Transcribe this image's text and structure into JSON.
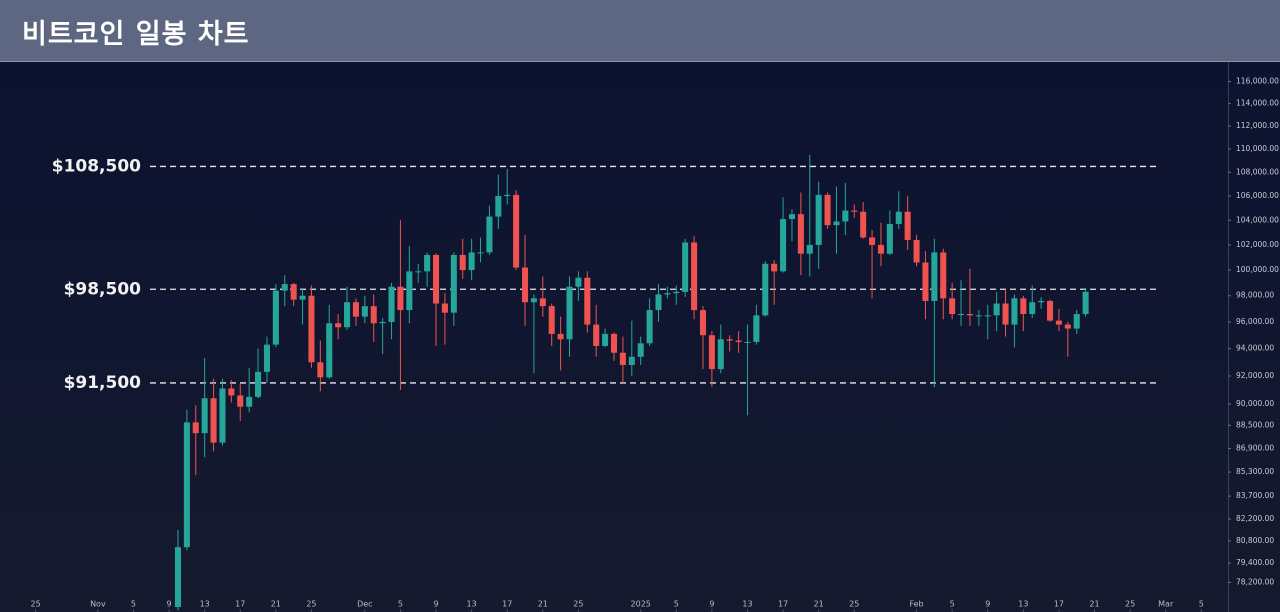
{
  "header": {
    "title": "비트코인 일봉 차트"
  },
  "chart_data": {
    "type": "candlestick",
    "log_scale": true,
    "up_color": "#26a69a",
    "down_color": "#ef5350",
    "xlim": [
      "2024-10-21",
      "2025-03-08"
    ],
    "ylim": [
      76400,
      117800
    ],
    "xticks": [
      {
        "value": "2024-10-25",
        "label": "25"
      },
      {
        "value": "2024-11-01",
        "label": "Nov"
      },
      {
        "value": "2024-11-05",
        "label": "5"
      },
      {
        "value": "2024-11-09",
        "label": "9"
      },
      {
        "value": "2024-11-13",
        "label": "13"
      },
      {
        "value": "2024-11-17",
        "label": "17"
      },
      {
        "value": "2024-11-21",
        "label": "21"
      },
      {
        "value": "2024-11-25",
        "label": "25"
      },
      {
        "value": "2024-12-01",
        "label": "Dec"
      },
      {
        "value": "2024-12-05",
        "label": "5"
      },
      {
        "value": "2024-12-09",
        "label": "9"
      },
      {
        "value": "2024-12-13",
        "label": "13"
      },
      {
        "value": "2024-12-17",
        "label": "17"
      },
      {
        "value": "2024-12-21",
        "label": "21"
      },
      {
        "value": "2024-12-25",
        "label": "25"
      },
      {
        "value": "2025-01-01",
        "label": "2025"
      },
      {
        "value": "2025-01-05",
        "label": "5"
      },
      {
        "value": "2025-01-09",
        "label": "9"
      },
      {
        "value": "2025-01-13",
        "label": "13"
      },
      {
        "value": "2025-01-17",
        "label": "17"
      },
      {
        "value": "2025-01-21",
        "label": "21"
      },
      {
        "value": "2025-01-25",
        "label": "25"
      },
      {
        "value": "2025-02-01",
        "label": "Feb"
      },
      {
        "value": "2025-02-05",
        "label": "5"
      },
      {
        "value": "2025-02-09",
        "label": "9"
      },
      {
        "value": "2025-02-13",
        "label": "13"
      },
      {
        "value": "2025-02-17",
        "label": "17"
      },
      {
        "value": "2025-02-21",
        "label": "21"
      },
      {
        "value": "2025-02-25",
        "label": "25"
      },
      {
        "value": "2025-03-01",
        "label": "Mar"
      },
      {
        "value": "2025-03-05",
        "label": "5"
      }
    ],
    "yticks": [
      {
        "value": 116000,
        "label": "116,000.00"
      },
      {
        "value": 114000,
        "label": "114,000.00"
      },
      {
        "value": 112000,
        "label": "112,000.00"
      },
      {
        "value": 110000,
        "label": "110,000.00"
      },
      {
        "value": 108000,
        "label": "108,000.00"
      },
      {
        "value": 106000,
        "label": "106,000.00"
      },
      {
        "value": 104000,
        "label": "104,000.00"
      },
      {
        "value": 102000,
        "label": "102,000.00"
      },
      {
        "value": 100000,
        "label": "100,000.00"
      },
      {
        "value": 98000,
        "label": "98,000.00"
      },
      {
        "value": 96000,
        "label": "96,000.00"
      },
      {
        "value": 94000,
        "label": "94,000.00"
      },
      {
        "value": 92000,
        "label": "92,000.00"
      },
      {
        "value": 90000,
        "label": "90,000.00"
      },
      {
        "value": 88500,
        "label": "88,500.00"
      },
      {
        "value": 86900,
        "label": "86,900.00"
      },
      {
        "value": 85300,
        "label": "85,300.00"
      },
      {
        "value": 83700,
        "label": "83,700.00"
      },
      {
        "value": 82200,
        "label": "82,200.00"
      },
      {
        "value": 80800,
        "label": "80,800.00"
      },
      {
        "value": 79400,
        "label": "79,400.00"
      },
      {
        "value": 78200,
        "label": "78,200.00"
      }
    ],
    "levels": [
      {
        "value": 108500,
        "label": "$108,500"
      },
      {
        "value": 98500,
        "label": "$98,500"
      },
      {
        "value": 91500,
        "label": "$91,500"
      }
    ],
    "x": [
      "2024-11-10",
      "2024-11-11",
      "2024-11-12",
      "2024-11-13",
      "2024-11-14",
      "2024-11-15",
      "2024-11-16",
      "2024-11-17",
      "2024-11-18",
      "2024-11-19",
      "2024-11-20",
      "2024-11-21",
      "2024-11-22",
      "2024-11-23",
      "2024-11-24",
      "2024-11-25",
      "2024-11-26",
      "2024-11-27",
      "2024-11-28",
      "2024-11-29",
      "2024-11-30",
      "2024-12-01",
      "2024-12-02",
      "2024-12-03",
      "2024-12-04",
      "2024-12-05",
      "2024-12-06",
      "2024-12-07",
      "2024-12-08",
      "2024-12-09",
      "2024-12-10",
      "2024-12-11",
      "2024-12-12",
      "2024-12-13",
      "2024-12-14",
      "2024-12-15",
      "2024-12-16",
      "2024-12-17",
      "2024-12-18",
      "2024-12-19",
      "2024-12-20",
      "2024-12-21",
      "2024-12-22",
      "2024-12-23",
      "2024-12-24",
      "2024-12-25",
      "2024-12-26",
      "2024-12-27",
      "2024-12-28",
      "2024-12-29",
      "2024-12-30",
      "2024-12-31",
      "2025-01-01",
      "2025-01-02",
      "2025-01-03",
      "2025-01-04",
      "2025-01-05",
      "2025-01-06",
      "2025-01-07",
      "2025-01-08",
      "2025-01-09",
      "2025-01-10",
      "2025-01-11",
      "2025-01-12",
      "2025-01-13",
      "2025-01-14",
      "2025-01-15",
      "2025-01-16",
      "2025-01-17",
      "2025-01-18",
      "2025-01-19",
      "2025-01-20",
      "2025-01-21",
      "2025-01-22",
      "2025-01-23",
      "2025-01-24",
      "2025-01-25",
      "2025-01-26",
      "2025-01-27",
      "2025-01-28",
      "2025-01-29",
      "2025-01-30",
      "2025-01-31",
      "2025-02-01",
      "2025-02-02",
      "2025-02-03",
      "2025-02-04",
      "2025-02-05",
      "2025-02-06",
      "2025-02-07",
      "2025-02-08",
      "2025-02-09",
      "2025-02-10",
      "2025-02-11",
      "2025-02-12",
      "2025-02-13",
      "2025-02-14",
      "2025-02-15",
      "2025-02-16",
      "2025-02-17",
      "2025-02-18",
      "2025-02-19",
      "2025-02-20"
    ],
    "open": [
      76700,
      80400,
      88700,
      87950,
      90400,
      87300,
      91100,
      90600,
      89800,
      90500,
      92300,
      94300,
      98400,
      98900,
      97700,
      98000,
      93000,
      91900,
      95900,
      95600,
      97500,
      96400,
      97200,
      95900,
      96000,
      98700,
      96900,
      99900,
      99900,
      101200,
      97400,
      96700,
      101200,
      100000,
      101400,
      101400,
      104300,
      106000,
      106100,
      100200,
      97500,
      97800,
      97200,
      95100,
      94700,
      98700,
      99400,
      95800,
      94200,
      95100,
      93700,
      92800,
      93400,
      94400,
      96900,
      98100,
      98200,
      98300,
      102200,
      96900,
      95000,
      92500,
      94700,
      94600,
      94500,
      94500,
      96500,
      100500,
      99900,
      104100,
      104500,
      101300,
      102000,
      106100,
      103600,
      103900,
      104800,
      104700,
      102600,
      102000,
      101300,
      103700,
      104700,
      102400,
      100600,
      97600,
      101400,
      97800,
      96600,
      96600,
      96500,
      96500,
      96500,
      97400,
      95800,
      97800,
      96600,
      97500,
      97600,
      96100,
      95800,
      95500,
      96600
    ],
    "high": [
      81500,
      89600,
      89900,
      93300,
      91800,
      91800,
      91700,
      91400,
      92600,
      94000,
      94900,
      98900,
      99600,
      99000,
      98600,
      98800,
      94600,
      97300,
      96600,
      98700,
      97800,
      98000,
      98100,
      96300,
      99000,
      104000,
      101900,
      100500,
      101400,
      101300,
      98200,
      101400,
      102500,
      102500,
      102600,
      105200,
      107800,
      108300,
      106500,
      102800,
      98100,
      99500,
      97400,
      96400,
      99500,
      99900,
      99900,
      97300,
      95500,
      95200,
      94900,
      96100,
      94900,
      97800,
      98900,
      98700,
      98800,
      102500,
      102700,
      97200,
      95300,
      95800,
      95000,
      95300,
      95800,
      97300,
      100700,
      100800,
      105900,
      104900,
      106300,
      109500,
      107200,
      106300,
      106800,
      107100,
      105300,
      105500,
      103200,
      103800,
      104800,
      106400,
      106000,
      102800,
      101500,
      102500,
      101700,
      99000,
      99200,
      100100,
      96900,
      97300,
      98300,
      98500,
      98100,
      98000,
      98800,
      97900,
      97700,
      97000,
      96000,
      96900,
      98600
    ],
    "low": [
      76500,
      80200,
      85100,
      86300,
      86700,
      87100,
      90100,
      88800,
      89400,
      90400,
      91500,
      94100,
      97200,
      97200,
      95800,
      92600,
      90900,
      91800,
      94700,
      95400,
      95700,
      95900,
      94500,
      93600,
      94700,
      91000,
      95900,
      99000,
      98700,
      94200,
      94300,
      95700,
      99300,
      99200,
      100600,
      101200,
      103300,
      105300,
      100000,
      95700,
      92200,
      96400,
      94200,
      92400,
      93400,
      97600,
      95200,
      93400,
      94100,
      93100,
      91500,
      92000,
      92800,
      94200,
      96000,
      97800,
      97300,
      97900,
      96200,
      92500,
      91200,
      92200,
      93800,
      93700,
      89200,
      94300,
      96400,
      97300,
      99800,
      102300,
      99600,
      99500,
      100100,
      103300,
      101300,
      102800,
      104200,
      102500,
      97800,
      100300,
      101200,
      103300,
      101600,
      100300,
      96200,
      91200,
      96200,
      96200,
      95700,
      95700,
      95700,
      94700,
      95300,
      94900,
      94100,
      95300,
      96300,
      97000,
      96000,
      95300,
      93400,
      95100,
      96400
    ],
    "close": [
      80400,
      88700,
      87950,
      90400,
      87300,
      91100,
      90600,
      89800,
      90500,
      92300,
      94300,
      98400,
      98900,
      97700,
      98000,
      93000,
      91900,
      95900,
      95600,
      97500,
      96400,
      97200,
      95900,
      96000,
      98700,
      96900,
      99900,
      99900,
      101200,
      97400,
      96700,
      101200,
      100000,
      101400,
      101400,
      104300,
      106000,
      106100,
      100200,
      97500,
      97800,
      97200,
      95100,
      94700,
      98700,
      99400,
      95800,
      94200,
      95100,
      93700,
      92800,
      93400,
      94400,
      96900,
      98100,
      98200,
      98300,
      102200,
      96900,
      95000,
      92500,
      94700,
      94600,
      94500,
      94500,
      96500,
      100500,
      99900,
      104100,
      104500,
      101300,
      102000,
      106100,
      103600,
      103900,
      104800,
      104700,
      102600,
      102000,
      101300,
      103700,
      104700,
      102400,
      100600,
      97600,
      101400,
      97800,
      96600,
      96600,
      96500,
      96500,
      96500,
      97400,
      95800,
      97800,
      96600,
      97500,
      97600,
      96100,
      95800,
      95500,
      96600,
      98300
    ]
  }
}
